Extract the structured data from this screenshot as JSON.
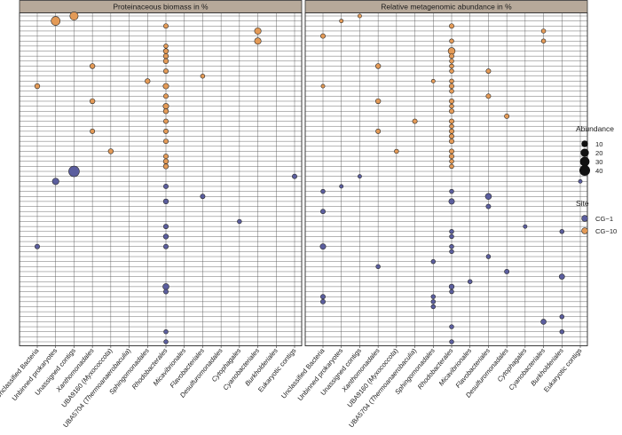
{
  "chart_data": {
    "type": "scatter",
    "subtype": "bubble-matrix",
    "panels": [
      "Proteinaceous biomass in %",
      "Relative metagenomic abundance in %"
    ],
    "categories": [
      "Unclassified Bacteria",
      "Unbinned prokaryotes",
      "Unassigned contigs",
      "Xanthomonadales",
      "UBA9160 (Myxococcota)",
      "UBA5704 (Thermoanaerobaculia)",
      "Sphingomonadales",
      "Rhodobacterales",
      "Micavibrionales",
      "Flavobacteriales",
      "Desulfuromonadales",
      "Cytophagales",
      "Cyanobacteriales",
      "Burkholderiales",
      "Eukaryotic contigs"
    ],
    "n_rows": 66,
    "row_order": "rows numbered from top (0) to bottom (65); upper rows CG-10, lower rows CG-1",
    "legend": {
      "size_title": "Abundance",
      "size_values": [
        10,
        20,
        30,
        40
      ],
      "color_title": "Site",
      "sites": [
        {
          "name": "CG−1",
          "color": "#5b5e9e"
        },
        {
          "name": "CG−10",
          "color": "#e39a57"
        }
      ]
    },
    "points": [
      {
        "panel": 0,
        "cat": 1,
        "row": 1,
        "value": 25,
        "site": 1
      },
      {
        "panel": 0,
        "cat": 2,
        "row": 0,
        "value": 20,
        "site": 1
      },
      {
        "panel": 0,
        "cat": 7,
        "row": 2,
        "value": 3,
        "site": 1
      },
      {
        "panel": 0,
        "cat": 12,
        "row": 3,
        "value": 10,
        "site": 1
      },
      {
        "panel": 0,
        "cat": 12,
        "row": 5,
        "value": 10,
        "site": 1
      },
      {
        "panel": 0,
        "cat": 7,
        "row": 6,
        "value": 2,
        "site": 1
      },
      {
        "panel": 0,
        "cat": 7,
        "row": 7,
        "value": 4,
        "site": 1
      },
      {
        "panel": 0,
        "cat": 7,
        "row": 8,
        "value": 4,
        "site": 1
      },
      {
        "panel": 0,
        "cat": 7,
        "row": 9,
        "value": 4,
        "site": 1
      },
      {
        "panel": 0,
        "cat": 3,
        "row": 10,
        "value": 4,
        "site": 1
      },
      {
        "panel": 0,
        "cat": 7,
        "row": 11,
        "value": 3,
        "site": 1
      },
      {
        "panel": 0,
        "cat": 9,
        "row": 12,
        "value": 2,
        "site": 1
      },
      {
        "panel": 0,
        "cat": 6,
        "row": 13,
        "value": 4,
        "site": 1
      },
      {
        "panel": 0,
        "cat": 0,
        "row": 14,
        "value": 4,
        "site": 1
      },
      {
        "panel": 0,
        "cat": 7,
        "row": 14,
        "value": 6,
        "site": 1
      },
      {
        "panel": 0,
        "cat": 7,
        "row": 16,
        "value": 3,
        "site": 1
      },
      {
        "panel": 0,
        "cat": 3,
        "row": 17,
        "value": 4,
        "site": 1
      },
      {
        "panel": 0,
        "cat": 7,
        "row": 18,
        "value": 6,
        "site": 1
      },
      {
        "panel": 0,
        "cat": 7,
        "row": 19,
        "value": 4,
        "site": 1
      },
      {
        "panel": 0,
        "cat": 7,
        "row": 21,
        "value": 3,
        "site": 1
      },
      {
        "panel": 0,
        "cat": 3,
        "row": 23,
        "value": 3,
        "site": 1
      },
      {
        "panel": 0,
        "cat": 7,
        "row": 23,
        "value": 3,
        "site": 1
      },
      {
        "panel": 0,
        "cat": 7,
        "row": 25,
        "value": 3,
        "site": 1
      },
      {
        "panel": 0,
        "cat": 4,
        "row": 27,
        "value": 4,
        "site": 1
      },
      {
        "panel": 0,
        "cat": 7,
        "row": 28,
        "value": 3,
        "site": 1
      },
      {
        "panel": 0,
        "cat": 7,
        "row": 29,
        "value": 4,
        "site": 1
      },
      {
        "panel": 0,
        "cat": 7,
        "row": 30,
        "value": 4,
        "site": 1
      },
      {
        "panel": 0,
        "cat": 2,
        "row": 31,
        "value": 40,
        "site": 0
      },
      {
        "panel": 0,
        "cat": 14,
        "row": 32,
        "value": 3,
        "site": 0
      },
      {
        "panel": 0,
        "cat": 1,
        "row": 33,
        "value": 10,
        "site": 0
      },
      {
        "panel": 0,
        "cat": 7,
        "row": 34,
        "value": 3,
        "site": 0
      },
      {
        "panel": 0,
        "cat": 9,
        "row": 36,
        "value": 3,
        "site": 0
      },
      {
        "panel": 0,
        "cat": 7,
        "row": 37,
        "value": 4,
        "site": 0
      },
      {
        "panel": 0,
        "cat": 11,
        "row": 41,
        "value": 2,
        "site": 0
      },
      {
        "panel": 0,
        "cat": 7,
        "row": 42,
        "value": 3,
        "site": 0
      },
      {
        "panel": 0,
        "cat": 7,
        "row": 44,
        "value": 4,
        "site": 0
      },
      {
        "panel": 0,
        "cat": 0,
        "row": 46,
        "value": 3,
        "site": 0
      },
      {
        "panel": 0,
        "cat": 7,
        "row": 46,
        "value": 3,
        "site": 0
      },
      {
        "panel": 0,
        "cat": 7,
        "row": 54,
        "value": 8,
        "site": 0
      },
      {
        "panel": 0,
        "cat": 7,
        "row": 55,
        "value": 3,
        "site": 0
      },
      {
        "panel": 0,
        "cat": 7,
        "row": 63,
        "value": 2,
        "site": 0
      },
      {
        "panel": 0,
        "cat": 7,
        "row": 65,
        "value": 2,
        "site": 0
      },
      {
        "panel": 1,
        "cat": 2,
        "row": 0,
        "value": 1,
        "site": 1
      },
      {
        "panel": 1,
        "cat": 1,
        "row": 1,
        "value": 1,
        "site": 1
      },
      {
        "panel": 1,
        "cat": 7,
        "row": 2,
        "value": 3,
        "site": 1
      },
      {
        "panel": 1,
        "cat": 0,
        "row": 4,
        "value": 3,
        "site": 1
      },
      {
        "panel": 1,
        "cat": 12,
        "row": 3,
        "value": 2,
        "site": 1
      },
      {
        "panel": 1,
        "cat": 12,
        "row": 5,
        "value": 2,
        "site": 1
      },
      {
        "panel": 1,
        "cat": 7,
        "row": 5,
        "value": 2,
        "site": 1
      },
      {
        "panel": 1,
        "cat": 7,
        "row": 7,
        "value": 12,
        "site": 1
      },
      {
        "panel": 1,
        "cat": 7,
        "row": 8,
        "value": 3,
        "site": 1
      },
      {
        "panel": 1,
        "cat": 7,
        "row": 9,
        "value": 2,
        "site": 1
      },
      {
        "panel": 1,
        "cat": 3,
        "row": 10,
        "value": 4,
        "site": 1
      },
      {
        "panel": 1,
        "cat": 7,
        "row": 10,
        "value": 2,
        "site": 1
      },
      {
        "panel": 1,
        "cat": 7,
        "row": 11,
        "value": 2,
        "site": 1
      },
      {
        "panel": 1,
        "cat": 9,
        "row": 11,
        "value": 3,
        "site": 1
      },
      {
        "panel": 1,
        "cat": 6,
        "row": 13,
        "value": 1,
        "site": 1
      },
      {
        "panel": 1,
        "cat": 7,
        "row": 13,
        "value": 2,
        "site": 1
      },
      {
        "panel": 1,
        "cat": 0,
        "row": 14,
        "value": 1,
        "site": 1
      },
      {
        "panel": 1,
        "cat": 7,
        "row": 14,
        "value": 3,
        "site": 1
      },
      {
        "panel": 1,
        "cat": 7,
        "row": 15,
        "value": 2,
        "site": 1
      },
      {
        "panel": 1,
        "cat": 9,
        "row": 16,
        "value": 3,
        "site": 1
      },
      {
        "panel": 1,
        "cat": 3,
        "row": 17,
        "value": 4,
        "site": 1
      },
      {
        "panel": 1,
        "cat": 7,
        "row": 17,
        "value": 3,
        "site": 1
      },
      {
        "panel": 1,
        "cat": 7,
        "row": 18,
        "value": 2,
        "site": 1
      },
      {
        "panel": 1,
        "cat": 7,
        "row": 19,
        "value": 3,
        "site": 1
      },
      {
        "panel": 1,
        "cat": 10,
        "row": 20,
        "value": 3,
        "site": 1
      },
      {
        "panel": 1,
        "cat": 5,
        "row": 21,
        "value": 3,
        "site": 1
      },
      {
        "panel": 1,
        "cat": 7,
        "row": 21,
        "value": 3,
        "site": 1
      },
      {
        "panel": 1,
        "cat": 7,
        "row": 22,
        "value": 2,
        "site": 1
      },
      {
        "panel": 1,
        "cat": 3,
        "row": 23,
        "value": 3,
        "site": 1
      },
      {
        "panel": 1,
        "cat": 7,
        "row": 23,
        "value": 3,
        "site": 1
      },
      {
        "panel": 1,
        "cat": 7,
        "row": 24,
        "value": 3,
        "site": 1
      },
      {
        "panel": 1,
        "cat": 7,
        "row": 25,
        "value": 3,
        "site": 1
      },
      {
        "panel": 1,
        "cat": 4,
        "row": 27,
        "value": 2,
        "site": 1
      },
      {
        "panel": 1,
        "cat": 7,
        "row": 27,
        "value": 3,
        "site": 1
      },
      {
        "panel": 1,
        "cat": 7,
        "row": 28,
        "value": 3,
        "site": 1
      },
      {
        "panel": 1,
        "cat": 7,
        "row": 29,
        "value": 2,
        "site": 1
      },
      {
        "panel": 1,
        "cat": 7,
        "row": 30,
        "value": 2,
        "site": 1
      },
      {
        "panel": 1,
        "cat": 2,
        "row": 32,
        "value": 1,
        "site": 0
      },
      {
        "panel": 1,
        "cat": 14,
        "row": 33,
        "value": 1,
        "site": 0
      },
      {
        "panel": 1,
        "cat": 1,
        "row": 34,
        "value": 1,
        "site": 0
      },
      {
        "panel": 1,
        "cat": 0,
        "row": 35,
        "value": 2,
        "site": 0
      },
      {
        "panel": 1,
        "cat": 7,
        "row": 35,
        "value": 2,
        "site": 0
      },
      {
        "panel": 1,
        "cat": 9,
        "row": 36,
        "value": 8,
        "site": 0
      },
      {
        "panel": 1,
        "cat": 7,
        "row": 37,
        "value": 6,
        "site": 0
      },
      {
        "panel": 1,
        "cat": 9,
        "row": 38,
        "value": 3,
        "site": 0
      },
      {
        "panel": 1,
        "cat": 0,
        "row": 39,
        "value": 3,
        "site": 0
      },
      {
        "panel": 1,
        "cat": 11,
        "row": 42,
        "value": 1,
        "site": 0
      },
      {
        "panel": 1,
        "cat": 13,
        "row": 43,
        "value": 2,
        "site": 0
      },
      {
        "panel": 1,
        "cat": 7,
        "row": 43,
        "value": 2,
        "site": 0
      },
      {
        "panel": 1,
        "cat": 7,
        "row": 44,
        "value": 2,
        "site": 0
      },
      {
        "panel": 1,
        "cat": 0,
        "row": 46,
        "value": 6,
        "site": 0
      },
      {
        "panel": 1,
        "cat": 7,
        "row": 46,
        "value": 2,
        "site": 0
      },
      {
        "panel": 1,
        "cat": 7,
        "row": 47,
        "value": 2,
        "site": 0
      },
      {
        "panel": 1,
        "cat": 9,
        "row": 48,
        "value": 2,
        "site": 0
      },
      {
        "panel": 1,
        "cat": 6,
        "row": 49,
        "value": 2,
        "site": 0
      },
      {
        "panel": 1,
        "cat": 3,
        "row": 50,
        "value": 2,
        "site": 0
      },
      {
        "panel": 1,
        "cat": 10,
        "row": 51,
        "value": 3,
        "site": 0
      },
      {
        "panel": 1,
        "cat": 13,
        "row": 52,
        "value": 5,
        "site": 0
      },
      {
        "panel": 1,
        "cat": 8,
        "row": 53,
        "value": 2,
        "site": 0
      },
      {
        "panel": 1,
        "cat": 7,
        "row": 54,
        "value": 4,
        "site": 0
      },
      {
        "panel": 1,
        "cat": 7,
        "row": 55,
        "value": 2,
        "site": 0
      },
      {
        "panel": 1,
        "cat": 0,
        "row": 56,
        "value": 3,
        "site": 0
      },
      {
        "panel": 1,
        "cat": 6,
        "row": 56,
        "value": 2,
        "site": 0
      },
      {
        "panel": 1,
        "cat": 0,
        "row": 57,
        "value": 3,
        "site": 0
      },
      {
        "panel": 1,
        "cat": 6,
        "row": 57,
        "value": 2,
        "site": 0
      },
      {
        "panel": 1,
        "cat": 6,
        "row": 58,
        "value": 2,
        "site": 0
      },
      {
        "panel": 1,
        "cat": 13,
        "row": 60,
        "value": 2,
        "site": 0
      },
      {
        "panel": 1,
        "cat": 12,
        "row": 61,
        "value": 5,
        "site": 0
      },
      {
        "panel": 1,
        "cat": 7,
        "row": 62,
        "value": 2,
        "site": 0
      },
      {
        "panel": 1,
        "cat": 13,
        "row": 63,
        "value": 2,
        "site": 0
      },
      {
        "panel": 1,
        "cat": 7,
        "row": 65,
        "value": 2,
        "site": 0
      }
    ]
  }
}
